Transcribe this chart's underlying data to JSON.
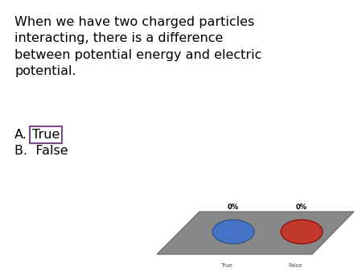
{
  "background_color": "#ffffff",
  "question_text": "When we have two charged particles\ninteracting, there is a difference\nbetween potential energy and electric\npotential.",
  "option_a_prefix": "A.",
  "option_a_text": "True",
  "option_b_text": "B.  False",
  "box_color": "#7B3F8C",
  "plate_color": "#888888",
  "plate_edge_color": "#666666",
  "blue_color": "#4472C4",
  "red_color": "#C0392B",
  "label_0pct": "0%",
  "sub_true": "True",
  "sub_false": "False",
  "question_fontsize": 11.5,
  "option_fontsize": 11.5,
  "label_fontsize": 6,
  "sub_fontsize": 5
}
